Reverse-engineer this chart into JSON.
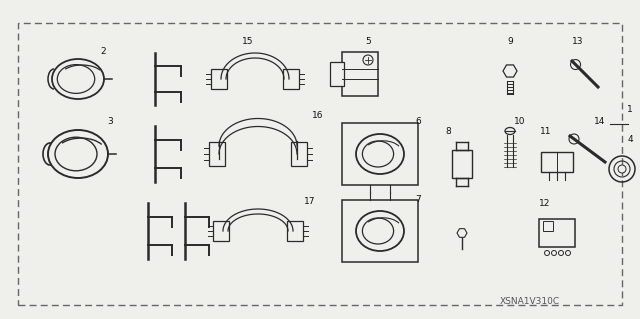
{
  "bg_color": "#efefeb",
  "line_color": "#2a2a2a",
  "border_dash_color": "#555555",
  "text_color": "#111111",
  "watermark": "XSNA1V310C",
  "fig_width": 6.4,
  "fig_height": 3.19,
  "dpi": 100
}
